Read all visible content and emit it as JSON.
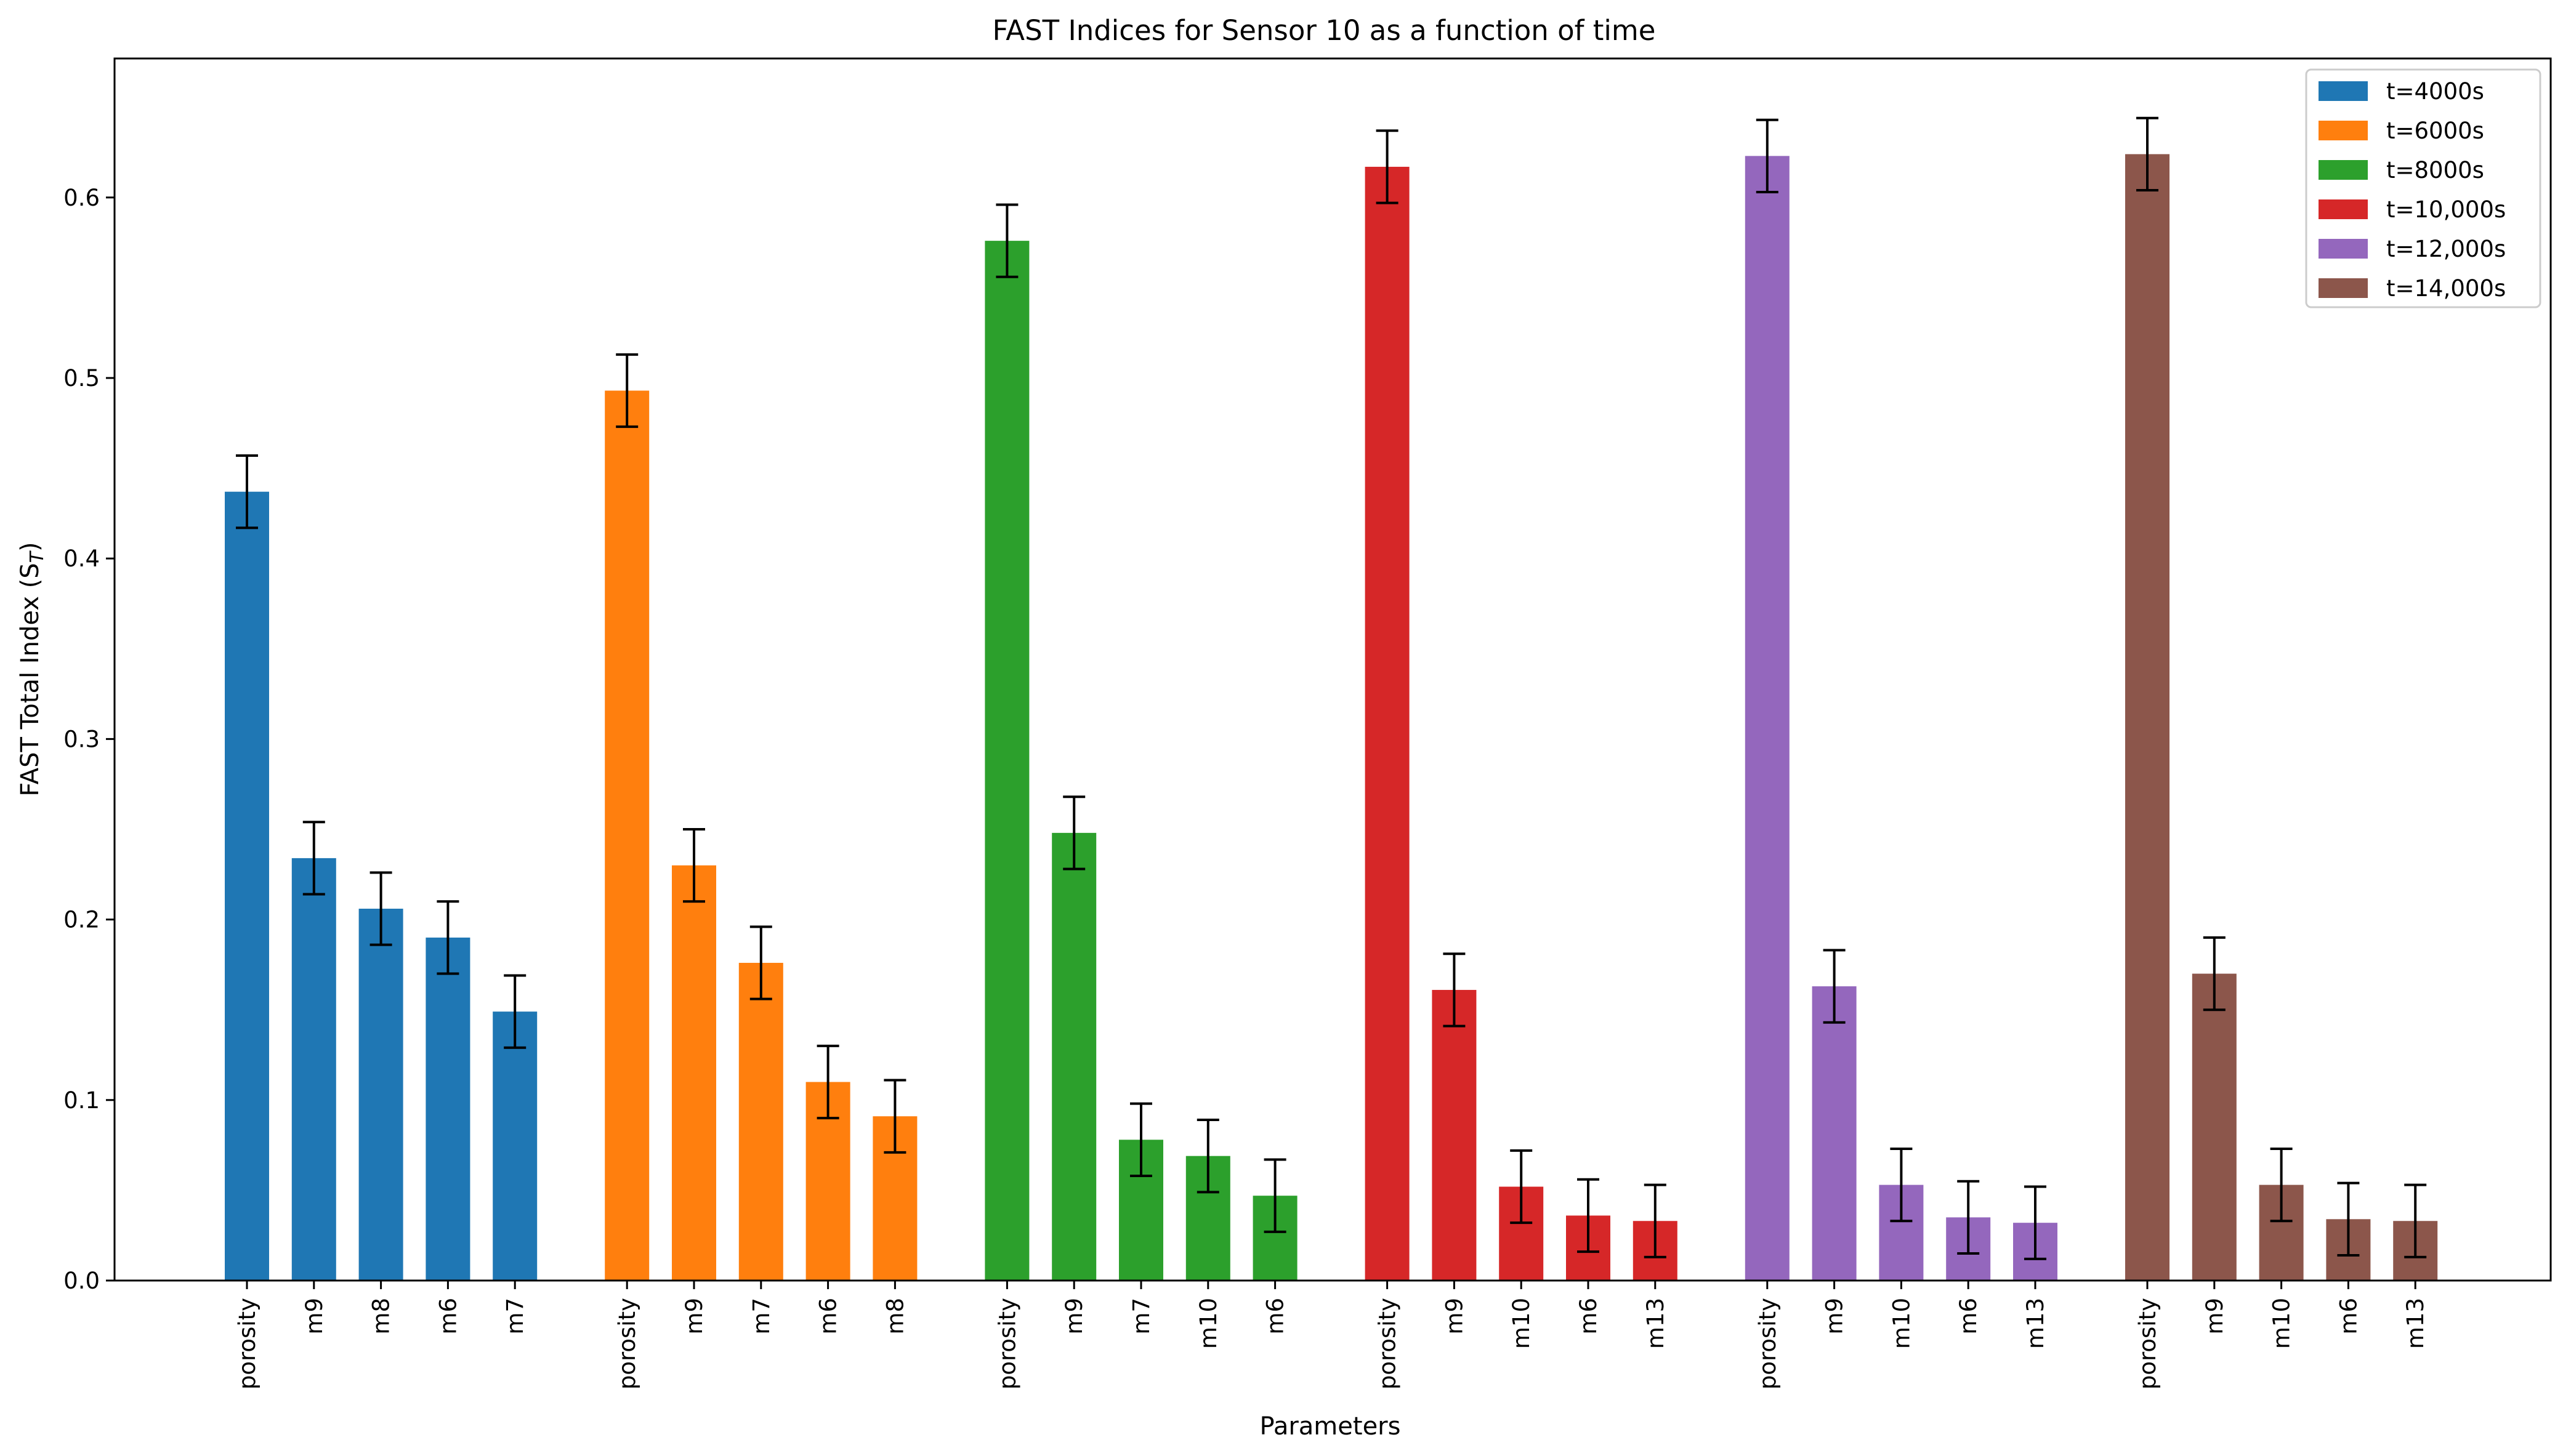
{
  "chart_data": {
    "type": "bar",
    "title": "FAST Indices for Sensor 10 as a function of time",
    "xlabel": "Parameters",
    "ylabel": "FAST Total Index (S",
    "ylabel_sub": "T",
    "ylabel_end": ")",
    "ylim": [
      0,
      0.677
    ],
    "yticks": [
      "0.0",
      "0.1",
      "0.2",
      "0.3",
      "0.4",
      "0.5",
      "0.6"
    ],
    "legend_position": "top-right",
    "error_bar": 0.02,
    "series": [
      {
        "name": "t=4000s",
        "color": "#1f77b4",
        "categories": [
          "porosity",
          "m9",
          "m8",
          "m6",
          "m7"
        ],
        "values": [
          0.437,
          0.234,
          0.206,
          0.19,
          0.149
        ]
      },
      {
        "name": "t=6000s",
        "color": "#ff7f0e",
        "categories": [
          "porosity",
          "m9",
          "m7",
          "m6",
          "m8"
        ],
        "values": [
          0.493,
          0.23,
          0.176,
          0.11,
          0.091
        ]
      },
      {
        "name": "t=8000s",
        "color": "#2ca02c",
        "categories": [
          "porosity",
          "m9",
          "m7",
          "m10",
          "m6"
        ],
        "values": [
          0.576,
          0.248,
          0.078,
          0.069,
          0.047
        ]
      },
      {
        "name": "t=10,000s",
        "color": "#d62728",
        "categories": [
          "porosity",
          "m9",
          "m10",
          "m6",
          "m13"
        ],
        "values": [
          0.617,
          0.161,
          0.052,
          0.036,
          0.033
        ]
      },
      {
        "name": "t=12,000s",
        "color": "#9467bd",
        "categories": [
          "porosity",
          "m9",
          "m10",
          "m6",
          "m13"
        ],
        "values": [
          0.623,
          0.163,
          0.053,
          0.035,
          0.032
        ]
      },
      {
        "name": "t=14,000s",
        "color": "#8c564b",
        "categories": [
          "porosity",
          "m9",
          "m10",
          "m6",
          "m13"
        ],
        "values": [
          0.624,
          0.17,
          0.053,
          0.034,
          0.033
        ]
      }
    ]
  }
}
